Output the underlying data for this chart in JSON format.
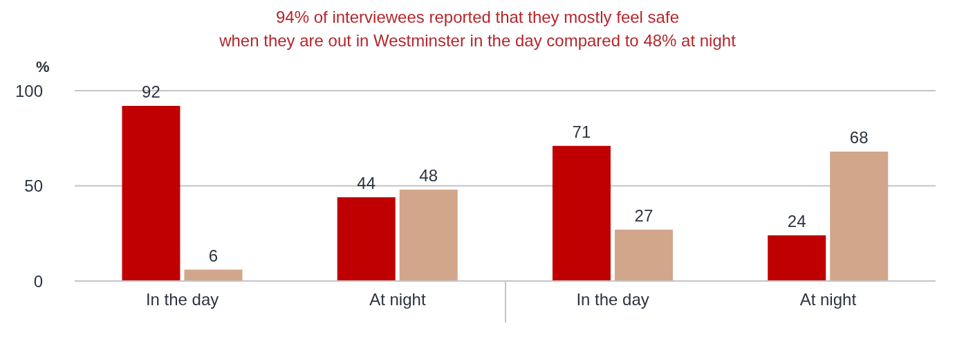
{
  "chart_data": {
    "type": "bar",
    "title": "94% of interviewees reported that they mostly feel safe\nwhen they are out in Westminster in the day compared to 48% at night",
    "ylabel": "%",
    "categories": [
      "In the day",
      "At night",
      "In the day",
      "At night"
    ],
    "series": [
      {
        "color": "#c00000",
        "values": [
          92,
          44,
          71,
          24
        ]
      },
      {
        "color": "#d2a68b",
        "values": [
          6,
          48,
          27,
          68
        ]
      }
    ],
    "ylim": [
      0,
      100
    ],
    "yticks": [
      0,
      50,
      100
    ],
    "grid": "y",
    "data_labels": true
  }
}
